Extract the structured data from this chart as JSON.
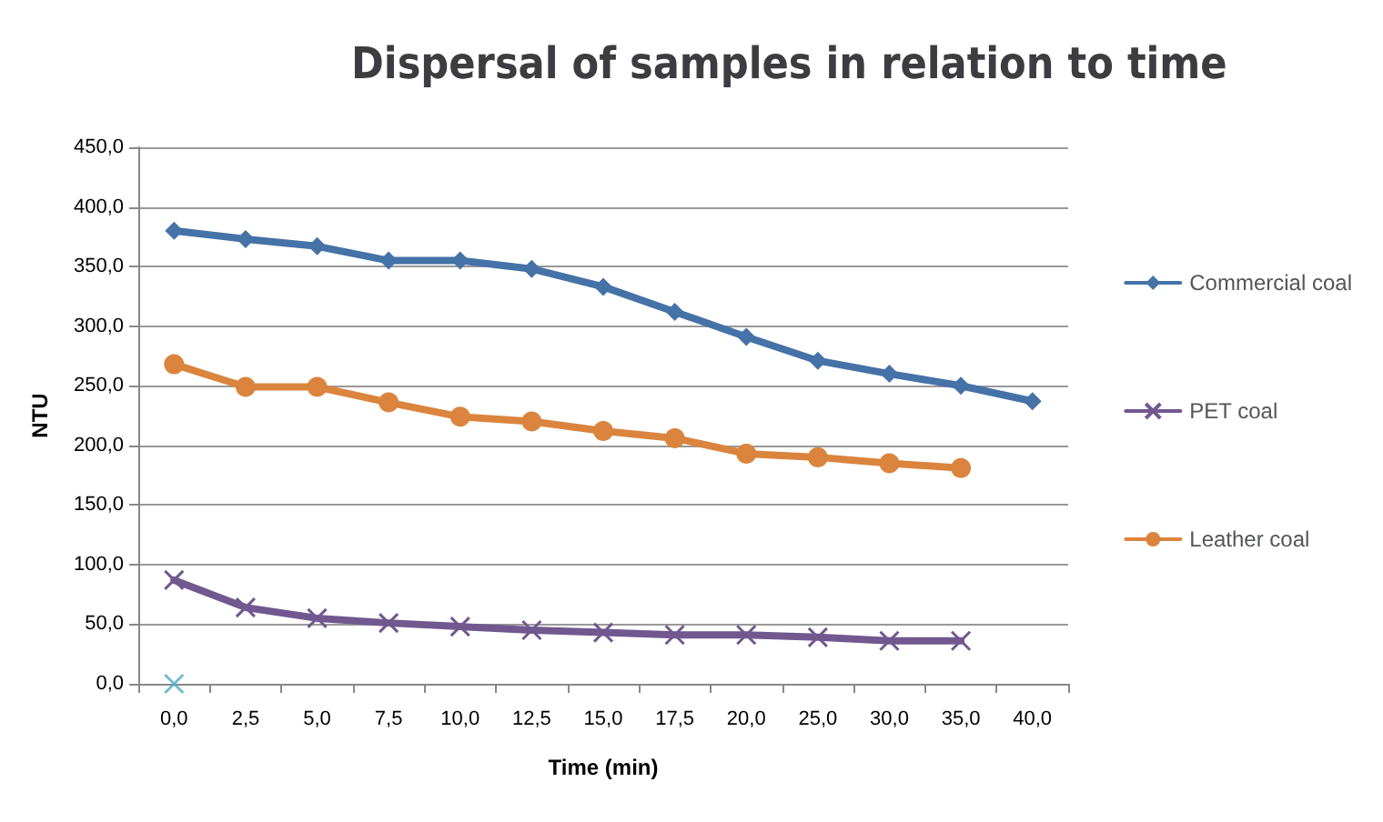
{
  "chart_data": {
    "type": "line",
    "title": "Dispersal of samples in relation to time",
    "xlabel": "Time (min)",
    "ylabel": "NTU",
    "categories": [
      "0,0",
      "2,5",
      "5,0",
      "7,5",
      "10,0",
      "12,5",
      "15,0",
      "17,5",
      "20,0",
      "25,0",
      "30,0",
      "35,0",
      "40,0"
    ],
    "series": [
      {
        "name": "Commercial coal",
        "color": "#4572a7",
        "marker": "diamond",
        "values": [
          380,
          373,
          367,
          355,
          355,
          348,
          333,
          312,
          291,
          271,
          260,
          250,
          237
        ]
      },
      {
        "name": "PET coal",
        "color": "#71588f",
        "marker": "cross",
        "values": [
          87,
          64,
          55,
          51,
          48,
          45,
          43,
          41,
          41,
          39,
          36,
          36,
          null
        ]
      },
      {
        "name": "Leather coal",
        "color": "#db843d",
        "marker": "circle",
        "values": [
          268,
          249,
          249,
          236,
          224,
          220,
          212,
          206,
          193,
          190,
          185,
          181,
          null
        ]
      },
      {
        "color": "#4bacc6",
        "marker": "cross",
        "type": "scatter",
        "values": [
          0,
          null,
          null,
          null,
          null,
          null,
          null,
          null,
          null,
          null,
          null,
          null,
          null
        ]
      }
    ],
    "ylim": [
      0,
      450
    ],
    "yticks": [
      {
        "value": 0,
        "label": "0,0"
      },
      {
        "value": 50,
        "label": "50,0"
      },
      {
        "value": 100,
        "label": "100,0"
      },
      {
        "value": 150,
        "label": "150,0"
      },
      {
        "value": 200,
        "label": "200,0"
      },
      {
        "value": 250,
        "label": "250,0"
      },
      {
        "value": 300,
        "label": "300,0"
      },
      {
        "value": 350,
        "label": "350,0"
      },
      {
        "value": 400,
        "label": "400,0"
      },
      {
        "value": 450,
        "label": "450,0"
      }
    ],
    "grid": "y",
    "legend": "right"
  }
}
